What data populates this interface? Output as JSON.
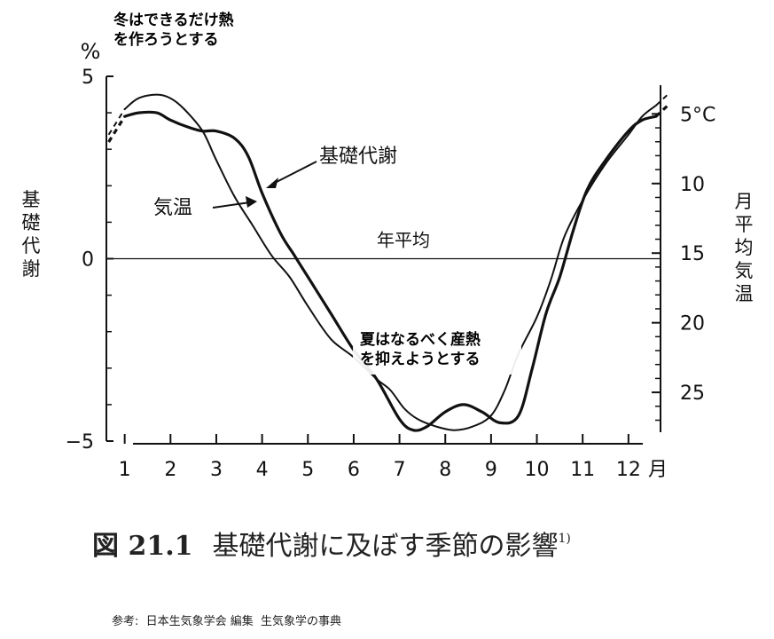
{
  "chart_data": {
    "type": "line",
    "annotations": {
      "winter": [
        "冬はできるだけ熱",
        "を作ろうとする"
      ],
      "summer": [
        "夏はなるべく産熱",
        "を抑えようとする"
      ],
      "annual_mean": "年平均"
    },
    "left_axis": {
      "unit": "%",
      "label": "基礎代謝",
      "range": [
        -5,
        5
      ],
      "ticks": [
        {
          "value": 5,
          "label": "5"
        },
        {
          "value": 0,
          "label": "0"
        },
        {
          "value": -5,
          "label": "−5"
        }
      ]
    },
    "right_axis": {
      "label": "月平均気温",
      "range": [
        2.3,
        28.5
      ],
      "inverted": true,
      "ticks": [
        {
          "value": 5,
          "label": "5°C"
        },
        {
          "value": 10,
          "label": "10"
        },
        {
          "value": 15,
          "label": "15"
        },
        {
          "value": 20,
          "label": "20"
        },
        {
          "value": 25,
          "label": "25"
        }
      ]
    },
    "x_axis": {
      "range": [
        0.6,
        12.7
      ],
      "ticks": [
        {
          "value": 1,
          "label": "1"
        },
        {
          "value": 2,
          "label": "2"
        },
        {
          "value": 3,
          "label": "3"
        },
        {
          "value": 4,
          "label": "4"
        },
        {
          "value": 5,
          "label": "5"
        },
        {
          "value": 6,
          "label": "6"
        },
        {
          "value": 7,
          "label": "7"
        },
        {
          "value": 8,
          "label": "8"
        },
        {
          "value": 9,
          "label": "9"
        },
        {
          "value": 10,
          "label": "10"
        },
        {
          "value": 11,
          "label": "11"
        },
        {
          "value": 12,
          "label": "12"
        }
      ],
      "unit_label": "月"
    },
    "series": [
      {
        "name": "基礎代謝",
        "axis": "left",
        "x": [
          1.0,
          1.3,
          1.7,
          2.0,
          2.4,
          2.7,
          3.0,
          3.4,
          3.7,
          4.0,
          4.4,
          4.7,
          5.0,
          5.5,
          6.0,
          6.5,
          7.0,
          7.3,
          7.6,
          8.0,
          8.4,
          8.8,
          9.2,
          9.6,
          9.9,
          10.2,
          10.5,
          10.8,
          11.1,
          11.5,
          12.0,
          12.3,
          12.6
        ],
        "y": [
          3.9,
          4.0,
          4.0,
          3.8,
          3.6,
          3.5,
          3.5,
          3.3,
          2.8,
          1.8,
          0.7,
          0.1,
          -0.5,
          -1.5,
          -2.5,
          -3.3,
          -4.4,
          -4.7,
          -4.6,
          -4.2,
          -4.0,
          -4.2,
          -4.5,
          -4.3,
          -3.0,
          -1.5,
          -0.5,
          0.8,
          1.9,
          2.7,
          3.5,
          3.8,
          3.9
        ]
      },
      {
        "name": "気温",
        "axis": "left",
        "x": [
          1.0,
          1.3,
          1.7,
          2.0,
          2.3,
          2.7,
          3.0,
          3.4,
          3.8,
          4.2,
          4.6,
          5.0,
          5.5,
          6.0,
          6.5,
          6.8,
          7.1,
          7.4,
          7.8,
          8.2,
          8.6,
          9.0,
          9.3,
          9.6,
          10.0,
          10.3,
          10.6,
          11.0,
          11.5,
          12.0,
          12.3,
          12.6
        ],
        "y": [
          4.1,
          4.4,
          4.5,
          4.4,
          4.1,
          3.5,
          2.7,
          1.7,
          0.9,
          0.1,
          -0.5,
          -1.3,
          -2.2,
          -2.7,
          -3.3,
          -3.6,
          -4.1,
          -4.4,
          -4.6,
          -4.7,
          -4.6,
          -4.3,
          -3.6,
          -2.6,
          -1.6,
          -0.6,
          0.6,
          1.6,
          2.6,
          3.4,
          3.9,
          4.2
        ]
      }
    ],
    "baseline_value": 0
  },
  "caption": {
    "figure_number": "図 21.1",
    "title": "基礎代謝に及ぼす季節の影響",
    "ref": "1)"
  },
  "source_note": "参考:  日本生気象学会 編集  生気象学の事典"
}
